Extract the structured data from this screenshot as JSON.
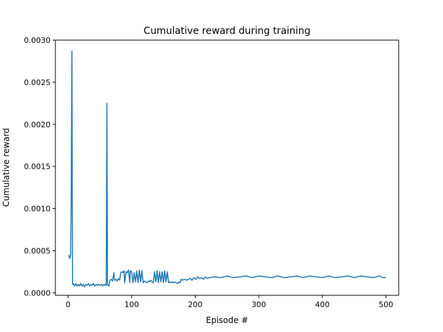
{
  "chart_data": {
    "type": "line",
    "title": "Cumulative reward during training",
    "xlabel": "Episode #",
    "ylabel": "Cumulative reward",
    "xlim": [
      -20,
      520
    ],
    "ylim": [
      -3e-05,
      0.003
    ],
    "xticks": [
      0,
      100,
      200,
      300,
      400,
      500
    ],
    "xtick_labels": [
      "0",
      "100",
      "200",
      "300",
      "400",
      "500"
    ],
    "yticks": [
      0,
      0.0005,
      0.001,
      0.0015,
      0.002,
      0.0025,
      0.003
    ],
    "ytick_labels": [
      "0.0000",
      "0.0005",
      "0.0010",
      "0.0015",
      "0.0020",
      "0.0025",
      "0.0030"
    ],
    "grid": false,
    "line_color": "#1f77b4",
    "series": [
      {
        "points": [
          [
            1,
            0.00045
          ],
          [
            2,
            0.00042
          ],
          [
            3,
            0.00041
          ],
          [
            4,
            0.00046
          ],
          [
            5,
            0.0012
          ],
          [
            6,
            0.00287
          ],
          [
            7,
            0.0001
          ],
          [
            8,
            0.00011
          ],
          [
            10,
            8e-05
          ],
          [
            12,
            0.00011
          ],
          [
            14,
            8e-05
          ],
          [
            16,
            0.0001
          ],
          [
            18,
            8e-05
          ],
          [
            20,
            0.00011
          ],
          [
            22,
            8e-05
          ],
          [
            24,
            0.0001
          ],
          [
            26,
            7e-05
          ],
          [
            28,
            0.0001
          ],
          [
            30,
            9e-05
          ],
          [
            32,
            0.00011
          ],
          [
            34,
            8e-05
          ],
          [
            36,
            0.0001
          ],
          [
            38,
            9e-05
          ],
          [
            40,
            0.00011
          ],
          [
            42,
            8e-05
          ],
          [
            44,
            0.0001
          ],
          [
            46,
            9e-05
          ],
          [
            48,
            0.0001
          ],
          [
            50,
            9e-05
          ],
          [
            52,
            0.0001
          ],
          [
            54,
            8e-05
          ],
          [
            56,
            0.0001
          ],
          [
            58,
            9e-05
          ],
          [
            59,
            0.0001
          ],
          [
            60,
            9e-05
          ],
          [
            61,
            0.00225
          ],
          [
            62,
            0.0001
          ],
          [
            64,
            8e-05
          ],
          [
            66,
            0.00015
          ],
          [
            68,
            0.00016
          ],
          [
            70,
            0.00014
          ],
          [
            72,
            0.00024
          ],
          [
            73,
            0.00015
          ],
          [
            75,
            0.00016
          ],
          [
            77,
            0.00014
          ],
          [
            79,
            0.00017
          ],
          [
            81,
            0.00015
          ],
          [
            83,
            0.00024
          ],
          [
            84,
            0.00025
          ],
          [
            86,
            0.00024
          ],
          [
            88,
            0.00026
          ],
          [
            89,
            0.00012
          ],
          [
            91,
            0.00025
          ],
          [
            93,
            0.00024
          ],
          [
            95,
            0.00027
          ],
          [
            97,
            0.00012
          ],
          [
            98,
            0.00026
          ],
          [
            100,
            0.00025
          ],
          [
            102,
            0.00012
          ],
          [
            104,
            0.00024
          ],
          [
            106,
            0.00013
          ],
          [
            108,
            0.00026
          ],
          [
            110,
            0.00012
          ],
          [
            112,
            0.00027
          ],
          [
            114,
            0.00013
          ],
          [
            116,
            0.00026
          ],
          [
            118,
            0.00012
          ],
          [
            120,
            0.00014
          ],
          [
            122,
            0.00013
          ],
          [
            124,
            0.00012
          ],
          [
            126,
            0.00014
          ],
          [
            128,
            0.00013
          ],
          [
            130,
            0.00015
          ],
          [
            132,
            0.00013
          ],
          [
            134,
            0.00012
          ],
          [
            136,
            0.00025
          ],
          [
            138,
            0.00013
          ],
          [
            140,
            0.00026
          ],
          [
            142,
            0.00012
          ],
          [
            144,
            0.00025
          ],
          [
            146,
            0.00013
          ],
          [
            148,
            0.00025
          ],
          [
            150,
            0.00012
          ],
          [
            152,
            0.00026
          ],
          [
            154,
            0.00013
          ],
          [
            156,
            0.00025
          ],
          [
            158,
            0.00012
          ],
          [
            160,
            0.00013
          ],
          [
            162,
            0.00012
          ],
          [
            164,
            0.00013
          ],
          [
            166,
            0.00012
          ],
          [
            168,
            0.00013
          ],
          [
            170,
            0.00012
          ],
          [
            172,
            0.00011
          ],
          [
            174,
            0.00013
          ],
          [
            176,
            0.00012
          ],
          [
            178,
            0.00016
          ],
          [
            180,
            0.00015
          ],
          [
            183,
            0.00016
          ],
          [
            186,
            0.00015
          ],
          [
            189,
            0.00016
          ],
          [
            192,
            0.00017
          ],
          [
            195,
            0.00015
          ],
          [
            198,
            0.00018
          ],
          [
            201,
            0.00016
          ],
          [
            204,
            0.00019
          ],
          [
            207,
            0.00017
          ],
          [
            210,
            0.00018
          ],
          [
            213,
            0.00016
          ],
          [
            216,
            0.00019
          ],
          [
            219,
            0.00017
          ],
          [
            222,
            0.00018
          ],
          [
            230,
            0.00019
          ],
          [
            240,
            0.00018
          ],
          [
            250,
            0.0002
          ],
          [
            260,
            0.00018
          ],
          [
            270,
            0.00019
          ],
          [
            280,
            0.0002
          ],
          [
            290,
            0.00018
          ],
          [
            300,
            0.0002
          ],
          [
            310,
            0.00019
          ],
          [
            320,
            0.00018
          ],
          [
            330,
            0.0002
          ],
          [
            340,
            0.00018
          ],
          [
            350,
            0.00019
          ],
          [
            360,
            0.0002
          ],
          [
            370,
            0.00018
          ],
          [
            380,
            0.0002
          ],
          [
            390,
            0.00019
          ],
          [
            400,
            0.00018
          ],
          [
            410,
            0.0002
          ],
          [
            420,
            0.00018
          ],
          [
            430,
            0.00019
          ],
          [
            440,
            0.0002
          ],
          [
            450,
            0.00018
          ],
          [
            460,
            0.0002
          ],
          [
            470,
            0.00019
          ],
          [
            480,
            0.00018
          ],
          [
            490,
            0.0002
          ],
          [
            495,
            0.00018
          ],
          [
            500,
            0.00018
          ]
        ]
      }
    ]
  }
}
